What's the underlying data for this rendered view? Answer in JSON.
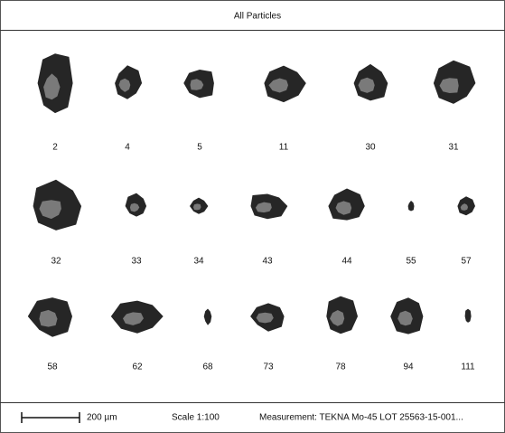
{
  "header": {
    "title": "All Particles"
  },
  "particles": {
    "rows": [
      [
        "2",
        "4",
        "5",
        "11",
        "30",
        "31"
      ],
      [
        "32",
        "33",
        "34",
        "43",
        "44",
        "55",
        "57"
      ],
      [
        "58",
        "62",
        "68",
        "73",
        "78",
        "94",
        "111"
      ]
    ]
  },
  "footer": {
    "scale_bar": "200 µm",
    "scale": "Scale 1:100",
    "measurement": "Measurement: TEKNA Mo-45 LOT 25563-15-001..."
  }
}
